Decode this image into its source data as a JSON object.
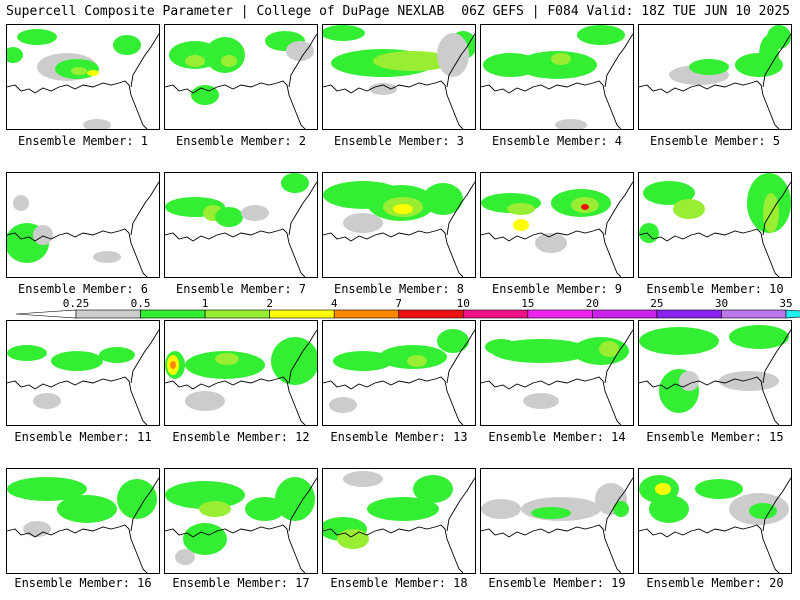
{
  "header": {
    "left": "Supercell Composite Parameter | College of DuPage NEXLAB",
    "right": "06Z GEFS | F084 Valid: 18Z TUE JUN 10 2025"
  },
  "members": [
    "Ensemble Member: 1",
    "Ensemble Member: 2",
    "Ensemble Member: 3",
    "Ensemble Member: 4",
    "Ensemble Member: 5",
    "Ensemble Member: 6",
    "Ensemble Member: 7",
    "Ensemble Member: 8",
    "Ensemble Member: 9",
    "Ensemble Member: 10",
    "Ensemble Member: 11",
    "Ensemble Member: 12",
    "Ensemble Member: 13",
    "Ensemble Member: 14",
    "Ensemble Member: 15",
    "Ensemble Member: 16",
    "Ensemble Member: 17",
    "Ensemble Member: 18",
    "Ensemble Member: 19",
    "Ensemble Member: 20"
  ],
  "colorbar": {
    "levels": [
      "0.25",
      "0.5",
      "1",
      "2",
      "4",
      "7",
      "10",
      "15",
      "20",
      "25",
      "30",
      "35"
    ],
    "colors": [
      "#ffffff",
      "#cccccc",
      "#33ee33",
      "#99ee33",
      "#ffff00",
      "#ff8800",
      "#ee1111",
      "#ee1188",
      "#ee22ee",
      "#cc22ee",
      "#8822ee",
      "#bb77ee",
      "#22eeee"
    ]
  },
  "fill_colors": {
    "gray": "#cccccc",
    "green": "#33ee33",
    "lightgreen": "#99ee33",
    "yellow": "#ffff00",
    "orange": "#ff8800",
    "red": "#ee1111"
  }
}
